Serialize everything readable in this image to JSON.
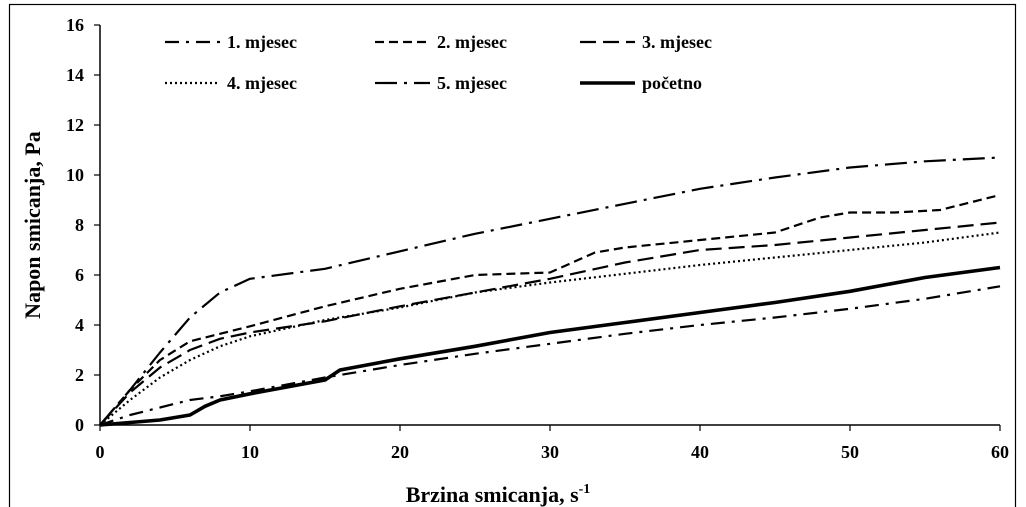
{
  "chart_data": {
    "type": "line",
    "xlabel": "Brzina smicanja, s",
    "xlabel_superscript": "-1",
    "ylabel": "Napon smicanja, Pa",
    "xlim": [
      0,
      60
    ],
    "ylim": [
      0,
      16
    ],
    "xticks": [
      "0",
      "10",
      "20",
      "30",
      "40",
      "50",
      "60"
    ],
    "yticks": [
      "0",
      "2",
      "4",
      "6",
      "8",
      "10",
      "12",
      "14",
      "16"
    ],
    "grid": false,
    "legend_position": "top",
    "series": [
      {
        "name": "1. mjesec",
        "style": "dash-dot",
        "x": [
          0,
          2,
          4,
          6,
          8,
          10,
          15,
          20,
          25,
          30,
          35,
          40,
          45,
          50,
          55,
          60
        ],
        "y": [
          0,
          0.4,
          0.7,
          1.0,
          1.15,
          1.35,
          1.9,
          2.4,
          2.85,
          3.25,
          3.65,
          4.0,
          4.3,
          4.65,
          5.05,
          5.55
        ]
      },
      {
        "name": "2. mjesec",
        "style": "dash",
        "x": [
          0,
          2,
          4,
          6,
          8,
          10,
          15,
          20,
          25,
          30,
          33,
          35,
          40,
          45,
          48,
          50,
          53,
          56,
          60
        ],
        "y": [
          0,
          1.4,
          2.6,
          3.35,
          3.65,
          3.95,
          4.75,
          5.45,
          6.0,
          6.1,
          6.9,
          7.1,
          7.4,
          7.7,
          8.3,
          8.5,
          8.5,
          8.6,
          9.2
        ]
      },
      {
        "name": "3. mjesec",
        "style": "long-dash",
        "x": [
          0,
          2,
          4,
          6,
          8,
          10,
          15,
          20,
          25,
          30,
          35,
          40,
          45,
          50,
          55,
          60
        ],
        "y": [
          0,
          1.3,
          2.3,
          3.0,
          3.45,
          3.7,
          4.15,
          4.75,
          5.3,
          5.85,
          6.5,
          7.0,
          7.2,
          7.5,
          7.8,
          8.1
        ]
      },
      {
        "name": "4. mjesec",
        "style": "dotted",
        "x": [
          0,
          2,
          4,
          6,
          8,
          10,
          15,
          20,
          25,
          30,
          35,
          40,
          45,
          50,
          55,
          60
        ],
        "y": [
          0,
          1.0,
          1.9,
          2.6,
          3.15,
          3.55,
          4.2,
          4.7,
          5.3,
          5.7,
          6.05,
          6.4,
          6.7,
          7.0,
          7.3,
          7.7
        ]
      },
      {
        "name": "5. mjesec",
        "style": "long-dash-dot",
        "x": [
          0,
          2,
          4,
          6,
          8,
          10,
          15,
          20,
          25,
          30,
          35,
          40,
          45,
          50,
          55,
          60
        ],
        "y": [
          0,
          1.4,
          2.9,
          4.3,
          5.3,
          5.85,
          6.25,
          6.95,
          7.65,
          8.25,
          8.85,
          9.45,
          9.9,
          10.3,
          10.55,
          10.7
        ]
      },
      {
        "name": "početno",
        "style": "solid-thick",
        "x": [
          0,
          2,
          4,
          6,
          7,
          8,
          10,
          15,
          16,
          20,
          25,
          30,
          35,
          40,
          45,
          50,
          55,
          60
        ],
        "y": [
          0,
          0.1,
          0.2,
          0.4,
          0.75,
          1.0,
          1.25,
          1.8,
          2.2,
          2.65,
          3.15,
          3.7,
          4.1,
          4.5,
          4.9,
          5.35,
          5.9,
          6.3
        ]
      }
    ]
  }
}
